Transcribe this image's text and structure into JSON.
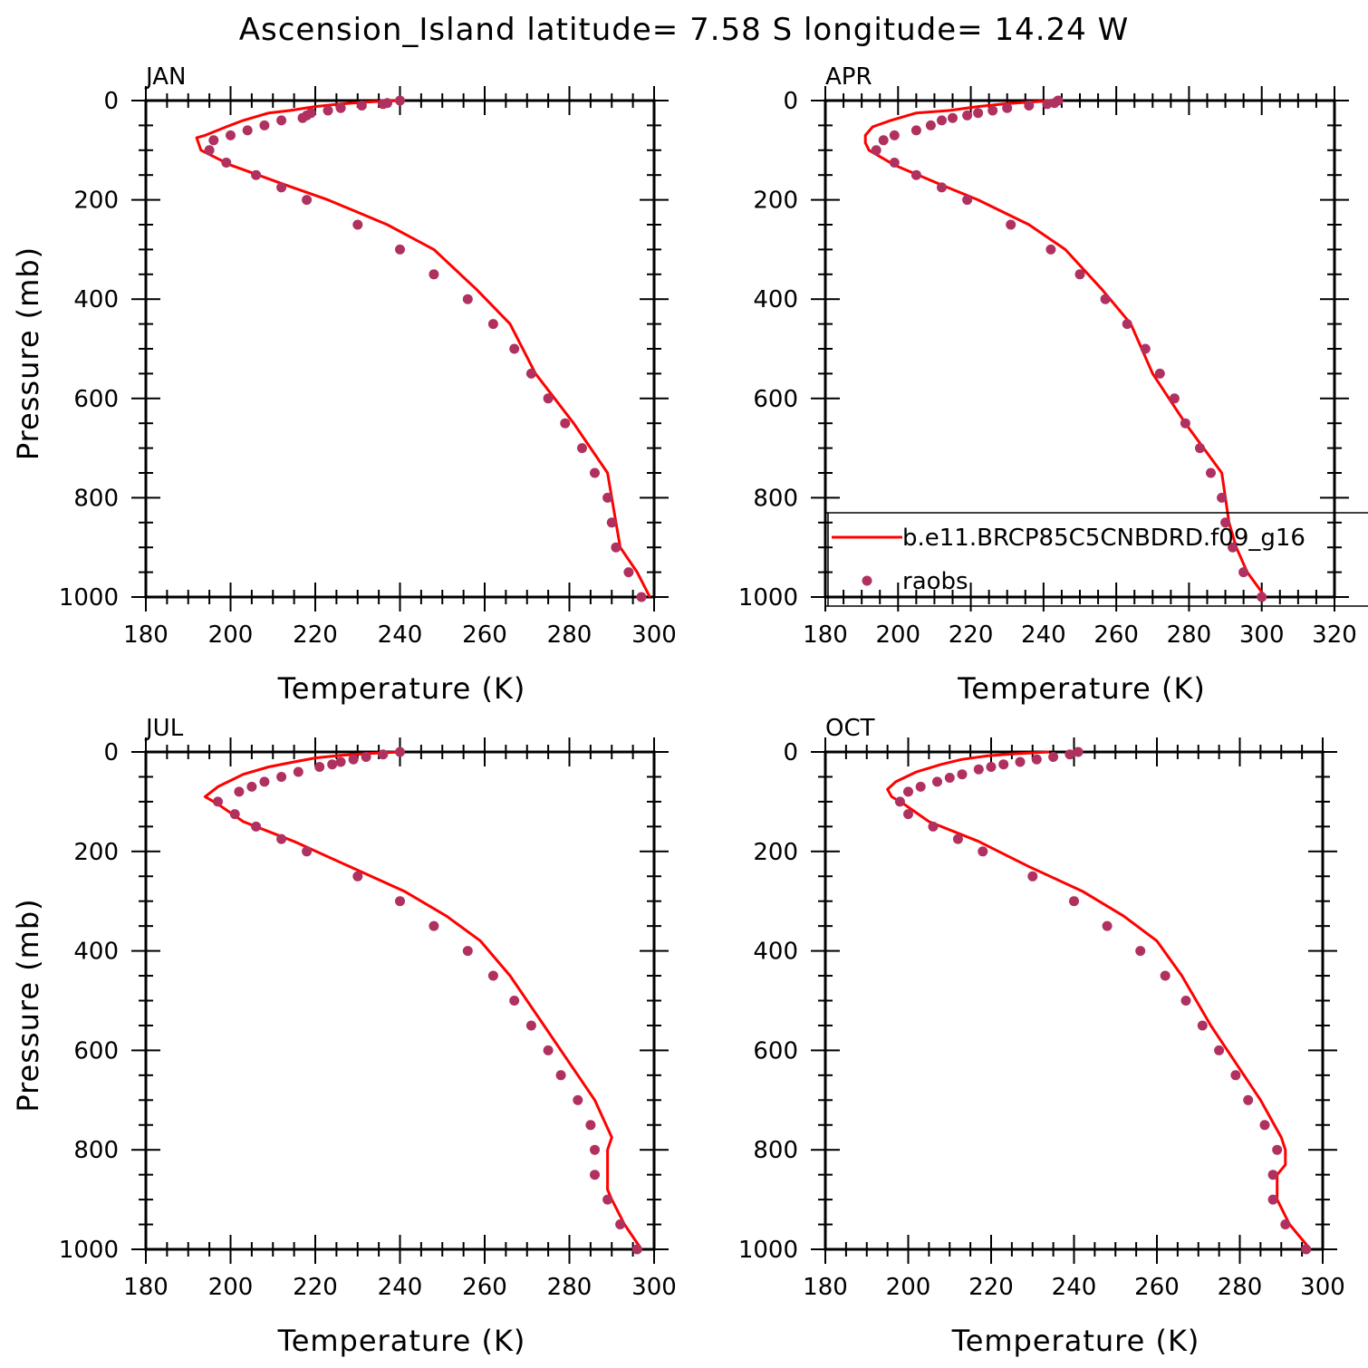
{
  "title": "Ascension_Island  latitude= 7.58 S longitude= 14.24 W",
  "colors": {
    "model": "#ff0000",
    "obs": "#b03060",
    "axis": "#000000"
  },
  "legend": {
    "model_label": "b.e11.BRCP85C5CNBDRD.f09_g16",
    "obs_label": "raobs",
    "placement": "bottom-right of APR panel"
  },
  "chart_data": [
    {
      "type": "line",
      "panel": "JAN",
      "xlabel": "Temperature (K)",
      "ylabel": "Pressure (mb)",
      "xlim": [
        180,
        300
      ],
      "ylim": [
        0,
        1000
      ],
      "xticks": [
        "180",
        "200",
        "220",
        "240",
        "260",
        "280",
        "300"
      ],
      "yticks": [
        "0",
        "200",
        "400",
        "600",
        "800",
        "1000"
      ],
      "series": [
        {
          "name": "b.e11.BRCP85C5CNBDRD.f09_g16",
          "kind": "line",
          "points": [
            [
              240,
              0
            ],
            [
              232,
              3
            ],
            [
              226,
              7
            ],
            [
              220,
              12
            ],
            [
              214,
              20
            ],
            [
              209,
              25
            ],
            [
              203,
              40
            ],
            [
              199,
              53
            ],
            [
              194,
              70
            ],
            [
              192,
              75
            ],
            [
              193,
              100
            ],
            [
              200,
              130
            ],
            [
              213,
              170
            ],
            [
              223,
              200
            ],
            [
              237,
              250
            ],
            [
              248,
              300
            ],
            [
              258,
              380
            ],
            [
              266,
              450
            ],
            [
              272,
              550
            ],
            [
              281,
              650
            ],
            [
              289,
              750
            ],
            [
              291,
              850
            ],
            [
              292,
              900
            ],
            [
              296,
              950
            ],
            [
              299,
              1000
            ]
          ]
        },
        {
          "name": "raobs",
          "kind": "scatter",
          "points": [
            [
              240,
              0
            ],
            [
              237,
              5
            ],
            [
              236,
              7
            ],
            [
              231,
              10
            ],
            [
              226,
              15
            ],
            [
              223,
              20
            ],
            [
              219,
              25
            ],
            [
              218,
              30
            ],
            [
              217,
              35
            ],
            [
              212,
              40
            ],
            [
              208,
              50
            ],
            [
              204,
              60
            ],
            [
              200,
              70
            ],
            [
              196,
              80
            ],
            [
              195,
              100
            ],
            [
              199,
              125
            ],
            [
              206,
              150
            ],
            [
              212,
              175
            ],
            [
              218,
              200
            ],
            [
              230,
              250
            ],
            [
              240,
              300
            ],
            [
              248,
              350
            ],
            [
              256,
              400
            ],
            [
              262,
              450
            ],
            [
              267,
              500
            ],
            [
              271,
              550
            ],
            [
              275,
              600
            ],
            [
              279,
              650
            ],
            [
              283,
              700
            ],
            [
              286,
              750
            ],
            [
              289,
              800
            ],
            [
              290,
              850
            ],
            [
              291,
              900
            ],
            [
              294,
              950
            ],
            [
              297,
              1000
            ]
          ]
        }
      ]
    },
    {
      "type": "line",
      "panel": "APR",
      "xlabel": "Temperature (K)",
      "ylabel": "",
      "xlim": [
        180,
        320
      ],
      "ylim": [
        0,
        1000
      ],
      "xticks": [
        "180",
        "200",
        "220",
        "240",
        "260",
        "280",
        "300",
        "320"
      ],
      "yticks": [
        "0",
        "200",
        "400",
        "600",
        "800",
        "1000"
      ],
      "series": [
        {
          "name": "b.e11.BRCP85C5CNBDRD.f09_g16",
          "kind": "line",
          "points": [
            [
              244,
              0
            ],
            [
              236,
              3
            ],
            [
              229,
              7
            ],
            [
              222,
              12
            ],
            [
              214,
              20
            ],
            [
              205,
              25
            ],
            [
              198,
              40
            ],
            [
              193,
              53
            ],
            [
              191,
              70
            ],
            [
              191,
              85
            ],
            [
              192,
              100
            ],
            [
              199,
              130
            ],
            [
              212,
              170
            ],
            [
              222,
              200
            ],
            [
              236,
              250
            ],
            [
              246,
              300
            ],
            [
              256,
              380
            ],
            [
              264,
              450
            ],
            [
              270,
              550
            ],
            [
              279,
              650
            ],
            [
              289,
              750
            ],
            [
              291,
              850
            ],
            [
              293,
              900
            ],
            [
              296,
              950
            ],
            [
              301,
              1000
            ]
          ]
        },
        {
          "name": "raobs",
          "kind": "scatter",
          "points": [
            [
              244,
              0
            ],
            [
              243,
              5
            ],
            [
              241,
              7
            ],
            [
              236,
              10
            ],
            [
              230,
              15
            ],
            [
              226,
              20
            ],
            [
              222,
              25
            ],
            [
              219,
              30
            ],
            [
              215,
              35
            ],
            [
              212,
              40
            ],
            [
              209,
              50
            ],
            [
              205,
              60
            ],
            [
              199,
              70
            ],
            [
              196,
              80
            ],
            [
              194,
              100
            ],
            [
              199,
              125
            ],
            [
              205,
              150
            ],
            [
              212,
              175
            ],
            [
              219,
              200
            ],
            [
              231,
              250
            ],
            [
              242,
              300
            ],
            [
              250,
              350
            ],
            [
              257,
              400
            ],
            [
              263,
              450
            ],
            [
              268,
              500
            ],
            [
              272,
              550
            ],
            [
              276,
              600
            ],
            [
              279,
              650
            ],
            [
              283,
              700
            ],
            [
              286,
              750
            ],
            [
              289,
              800
            ],
            [
              290,
              850
            ],
            [
              292,
              900
            ],
            [
              295,
              950
            ],
            [
              300,
              1000
            ]
          ]
        }
      ]
    },
    {
      "type": "line",
      "panel": "JUL",
      "xlabel": "Temperature (K)",
      "ylabel": "Pressure (mb)",
      "xlim": [
        180,
        300
      ],
      "ylim": [
        0,
        1000
      ],
      "xticks": [
        "180",
        "200",
        "220",
        "240",
        "260",
        "280",
        "300"
      ],
      "yticks": [
        "0",
        "200",
        "400",
        "600",
        "800",
        "1000"
      ],
      "series": [
        {
          "name": "b.e11.BRCP85C5CNBDRD.f09_g16",
          "kind": "line",
          "points": [
            [
              240,
              0
            ],
            [
              233,
              3
            ],
            [
              226,
              7
            ],
            [
              220,
              12
            ],
            [
              215,
              20
            ],
            [
              209,
              30
            ],
            [
              203,
              45
            ],
            [
              197,
              70
            ],
            [
              194,
              90
            ],
            [
              197,
              105
            ],
            [
              203,
              140
            ],
            [
              215,
              180
            ],
            [
              228,
              230
            ],
            [
              241,
              280
            ],
            [
              251,
              330
            ],
            [
              259,
              380
            ],
            [
              266,
              450
            ],
            [
              274,
              550
            ],
            [
              282,
              650
            ],
            [
              286,
              700
            ],
            [
              290,
              775
            ],
            [
              289,
              800
            ],
            [
              289,
              850
            ],
            [
              289,
              880
            ],
            [
              290,
              900
            ],
            [
              293,
              950
            ],
            [
              297,
              1000
            ]
          ]
        },
        {
          "name": "raobs",
          "kind": "scatter",
          "points": [
            [
              240,
              0
            ],
            [
              236,
              5
            ],
            [
              232,
              10
            ],
            [
              229,
              15
            ],
            [
              226,
              20
            ],
            [
              224,
              25
            ],
            [
              221,
              30
            ],
            [
              216,
              40
            ],
            [
              212,
              50
            ],
            [
              208,
              60
            ],
            [
              205,
              70
            ],
            [
              202,
              80
            ],
            [
              197,
              100
            ],
            [
              201,
              125
            ],
            [
              206,
              150
            ],
            [
              212,
              175
            ],
            [
              218,
              200
            ],
            [
              230,
              250
            ],
            [
              240,
              300
            ],
            [
              248,
              350
            ],
            [
              256,
              400
            ],
            [
              262,
              450
            ],
            [
              267,
              500
            ],
            [
              271,
              550
            ],
            [
              275,
              600
            ],
            [
              278,
              650
            ],
            [
              282,
              700
            ],
            [
              285,
              750
            ],
            [
              286,
              800
            ],
            [
              286,
              850
            ],
            [
              289,
              900
            ],
            [
              292,
              950
            ],
            [
              296,
              1000
            ]
          ]
        }
      ]
    },
    {
      "type": "line",
      "panel": "OCT",
      "xlabel": "Temperature (K)",
      "ylabel": "",
      "xlim": [
        180,
        300
      ],
      "ylim": [
        0,
        1000
      ],
      "xticks": [
        "180",
        "200",
        "220",
        "240",
        "260",
        "280",
        "300"
      ],
      "yticks": [
        "0",
        "200",
        "400",
        "600",
        "800",
        "1000"
      ],
      "series": [
        {
          "name": "b.e11.BRCP85C5CNBDRD.f09_g16",
          "kind": "line",
          "points": [
            [
              234,
              0
            ],
            [
              225,
              4
            ],
            [
              219,
              8
            ],
            [
              213,
              15
            ],
            [
              208,
              25
            ],
            [
              202,
              40
            ],
            [
              197,
              60
            ],
            [
              195,
              75
            ],
            [
              196,
              90
            ],
            [
              199,
              105
            ],
            [
              205,
              140
            ],
            [
              217,
              180
            ],
            [
              229,
              230
            ],
            [
              242,
              280
            ],
            [
              252,
              330
            ],
            [
              260,
              380
            ],
            [
              266,
              450
            ],
            [
              273,
              550
            ],
            [
              281,
              650
            ],
            [
              285,
              700
            ],
            [
              290,
              775
            ],
            [
              291,
              800
            ],
            [
              291,
              830
            ],
            [
              289,
              850
            ],
            [
              289,
              900
            ],
            [
              292,
              950
            ],
            [
              297,
              1000
            ]
          ]
        },
        {
          "name": "raobs",
          "kind": "scatter",
          "points": [
            [
              241,
              0
            ],
            [
              239,
              5
            ],
            [
              235,
              10
            ],
            [
              231,
              15
            ],
            [
              227,
              20
            ],
            [
              223,
              25
            ],
            [
              220,
              30
            ],
            [
              217,
              35
            ],
            [
              213,
              45
            ],
            [
              210,
              52
            ],
            [
              207,
              60
            ],
            [
              203,
              70
            ],
            [
              200,
              80
            ],
            [
              198,
              100
            ],
            [
              200,
              125
            ],
            [
              206,
              150
            ],
            [
              212,
              175
            ],
            [
              218,
              200
            ],
            [
              230,
              250
            ],
            [
              240,
              300
            ],
            [
              248,
              350
            ],
            [
              256,
              400
            ],
            [
              262,
              450
            ],
            [
              267,
              500
            ],
            [
              271,
              550
            ],
            [
              275,
              600
            ],
            [
              279,
              650
            ],
            [
              282,
              700
            ],
            [
              286,
              750
            ],
            [
              289,
              800
            ],
            [
              288,
              850
            ],
            [
              288,
              900
            ],
            [
              291,
              950
            ],
            [
              296,
              1000
            ]
          ]
        }
      ]
    }
  ]
}
